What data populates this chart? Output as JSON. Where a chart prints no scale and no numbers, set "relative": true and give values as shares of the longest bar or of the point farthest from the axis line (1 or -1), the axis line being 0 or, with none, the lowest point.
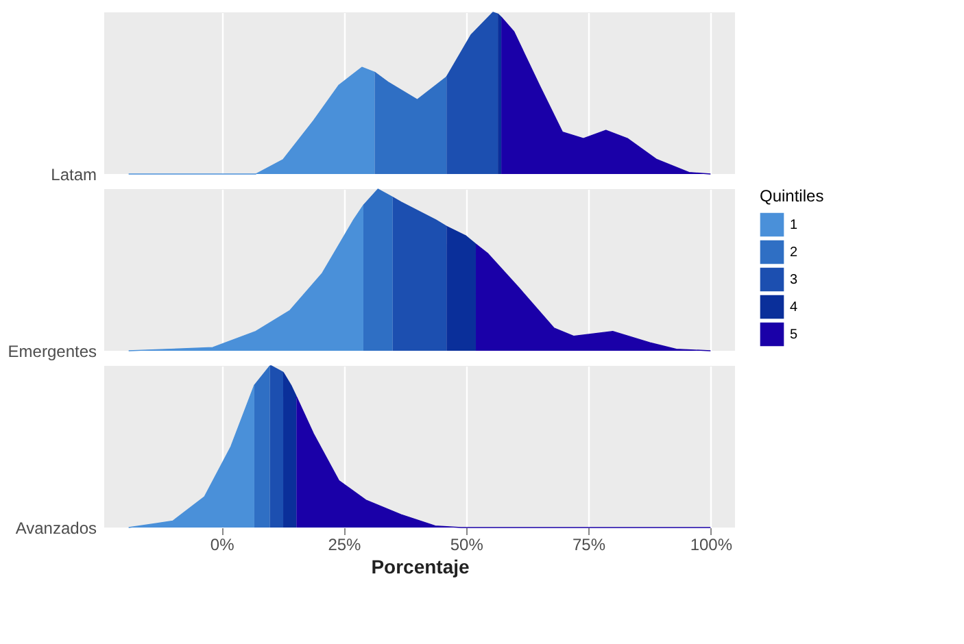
{
  "chart_data": [
    {
      "type": "area",
      "relative": true,
      "ylabel": "Latam",
      "xlim": [
        -24,
        105
      ],
      "grid": "x",
      "tick_labels": false,
      "series": [
        {
          "color": "#4a90d9",
          "x": [
            -19,
            7,
            12.6,
            18.8,
            24,
            28.7,
            31.3
          ],
          "values": [
            0,
            0,
            0.09,
            0.33,
            0.55,
            0.66,
            0.63
          ]
        },
        {
          "color": "#2f6fc4",
          "x": [
            31.3,
            34,
            40,
            46
          ],
          "values": [
            0.63,
            0.57,
            0.46,
            0.6
          ]
        },
        {
          "color": "#1c4fb0",
          "x": [
            46,
            51,
            55.5,
            56.5
          ],
          "values": [
            0.6,
            0.86,
            1,
            0.99
          ]
        },
        {
          "color": "#0a2f9a",
          "x": [
            56.5,
            57.2
          ],
          "values": [
            0.99,
            0.97
          ]
        },
        {
          "color": "#1a00a8",
          "x": [
            57.2,
            59.8,
            65,
            69.7,
            74,
            78.6,
            83,
            89,
            95.6,
            100
          ],
          "values": [
            0.97,
            0.88,
            0.55,
            0.26,
            0.22,
            0.27,
            0.22,
            0.09,
            0.01,
            0
          ]
        }
      ]
    },
    {
      "type": "area",
      "relative": true,
      "ylabel": "Emergentes",
      "xlim": [
        -24,
        105
      ],
      "grid": "x",
      "tick_labels": false,
      "legend": "right",
      "legend_title": "Quintiles",
      "series": [
        {
          "name": "1",
          "color": "#4a90d9",
          "x": [
            -19,
            -1.8,
            7,
            14,
            20.6,
            27,
            29
          ],
          "values": [
            0,
            0.02,
            0.12,
            0.25,
            0.48,
            0.81,
            0.9
          ]
        },
        {
          "name": "2",
          "color": "#2f6fc4",
          "x": [
            29,
            32,
            35
          ],
          "values": [
            0.9,
            1,
            0.95
          ]
        },
        {
          "name": "3",
          "color": "#1c4fb0",
          "x": [
            35,
            36.7,
            43.8,
            46
          ],
          "values": [
            0.95,
            0.92,
            0.81,
            0.77
          ]
        },
        {
          "name": "4",
          "color": "#0a2f9a",
          "x": [
            46,
            50,
            52
          ],
          "values": [
            0.77,
            0.71,
            0.66
          ]
        },
        {
          "name": "5",
          "color": "#1a00a8",
          "x": [
            52,
            54.5,
            60.8,
            68,
            72,
            80,
            87.6,
            93,
            100
          ],
          "values": [
            0.66,
            0.6,
            0.39,
            0.14,
            0.09,
            0.12,
            0.05,
            0.01,
            0
          ]
        }
      ]
    },
    {
      "type": "area",
      "relative": true,
      "ylabel": "Avanzados",
      "xlabel": "Porcentaje",
      "xlim": [
        -24,
        105
      ],
      "xticks": [
        {
          "value": 0,
          "label": "0%"
        },
        {
          "value": 25,
          "label": "25%"
        },
        {
          "value": 50,
          "label": "50%"
        },
        {
          "value": 75,
          "label": "75%"
        },
        {
          "value": 100,
          "label": "100%"
        }
      ],
      "grid": "x",
      "series": [
        {
          "color": "#4a90d9",
          "x": [
            -19,
            -10,
            -3.5,
            1.9,
            6.7
          ],
          "values": [
            0,
            0.04,
            0.19,
            0.5,
            0.88
          ]
        },
        {
          "color": "#2f6fc4",
          "x": [
            6.7,
            9.9
          ],
          "values": [
            0.88,
            1
          ]
        },
        {
          "color": "#1c4fb0",
          "x": [
            9.9,
            10.2,
            12.6
          ],
          "values": [
            1,
            1,
            0.96
          ]
        },
        {
          "color": "#0a2f9a",
          "x": [
            12.6,
            14.2,
            15.3
          ],
          "values": [
            0.96,
            0.88,
            0.81
          ]
        },
        {
          "color": "#1a00a8",
          "x": [
            15.3,
            18.8,
            24,
            29.5,
            36.7,
            43.7,
            49,
            100
          ],
          "values": [
            0.81,
            0.58,
            0.29,
            0.17,
            0.08,
            0.01,
            0,
            0
          ]
        }
      ]
    }
  ]
}
